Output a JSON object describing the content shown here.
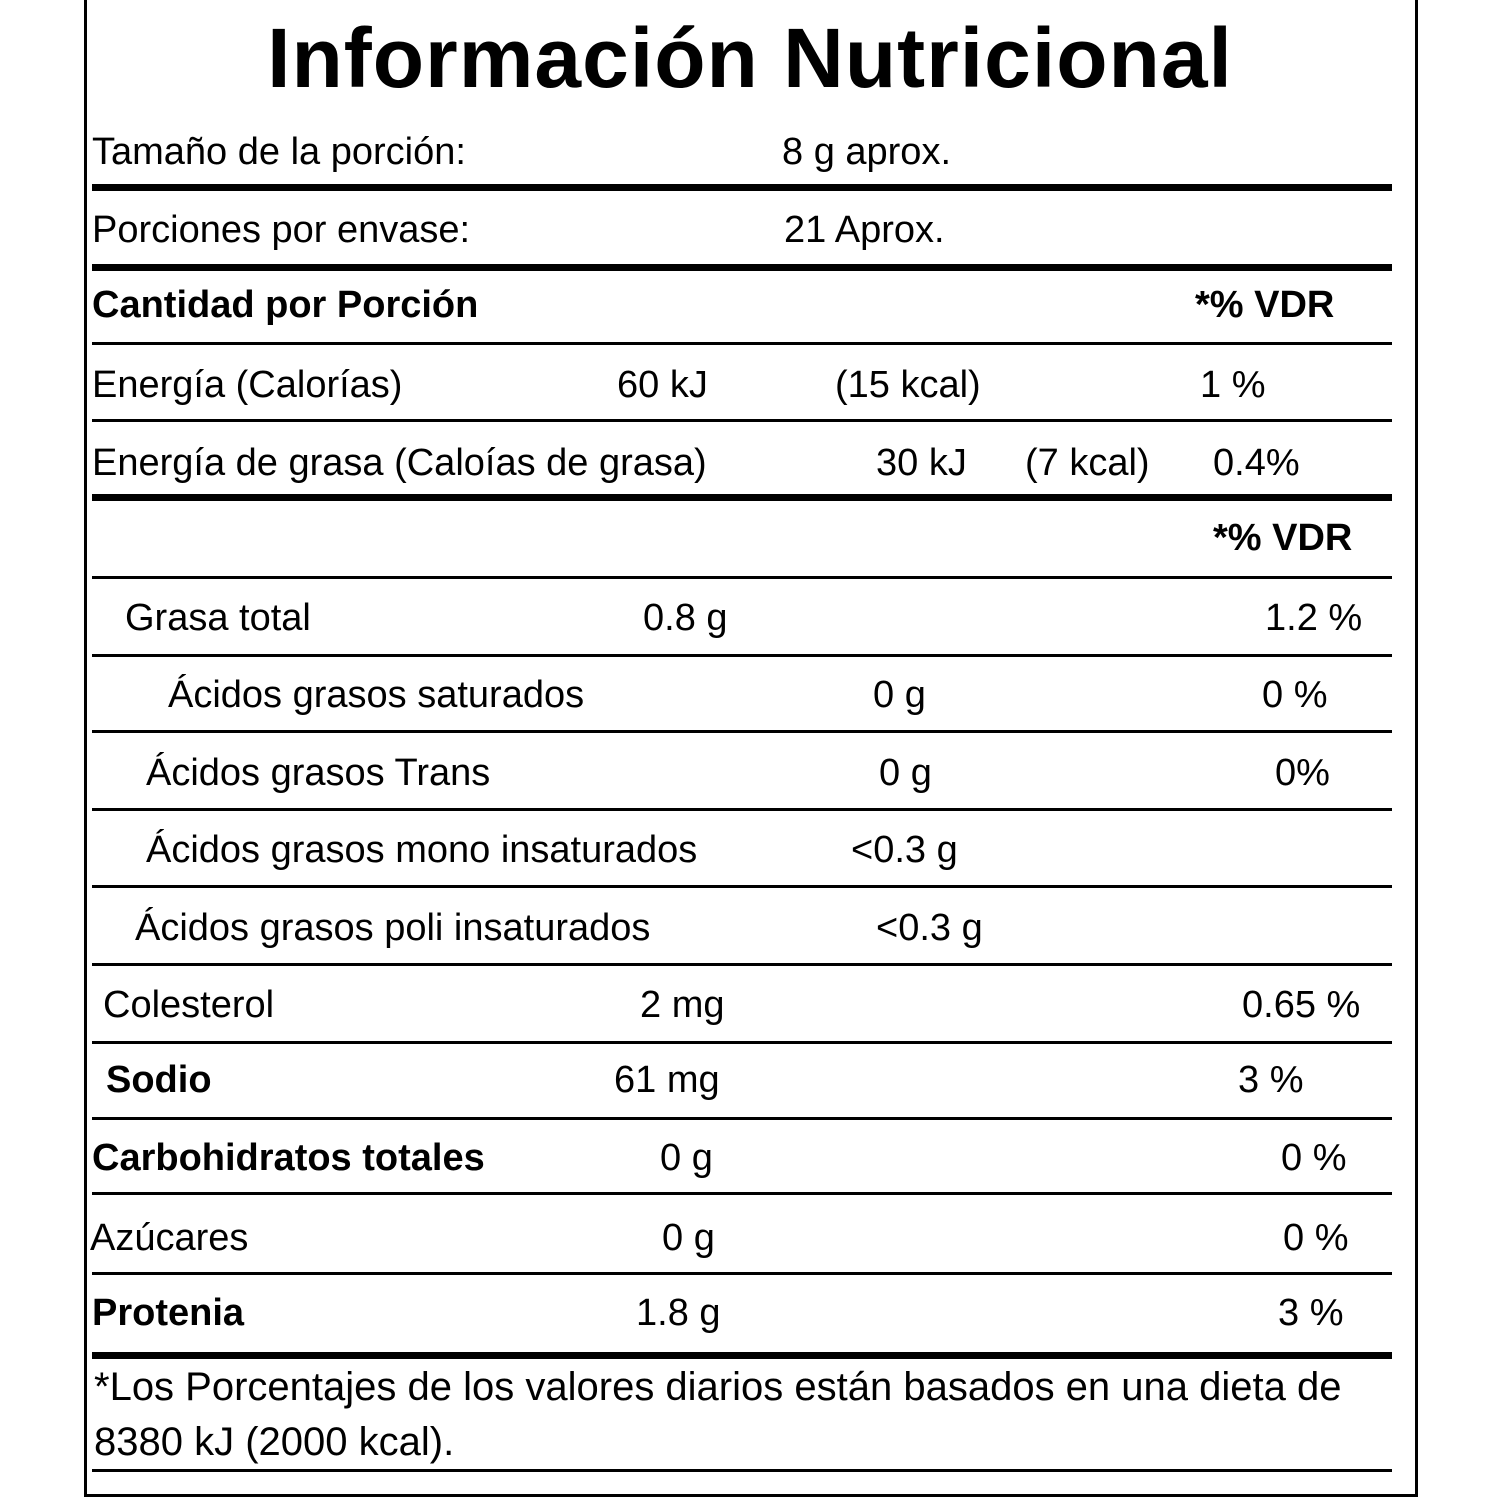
{
  "title": "Información Nutricional",
  "rows": [
    [
      "Tamaño de la porción:",
      "8 g aprox."
    ],
    [
      "Porciones por envase:",
      "21 Aprox."
    ],
    [
      "Cantidad por Porción",
      "*% VDR"
    ],
    [
      "Energía (Calorías)",
      "60 kJ",
      "(15 kcal)",
      "1 %"
    ],
    [
      "Energía de grasa (Caloías de grasa)",
      "30 kJ",
      "(7 kcal)",
      "0.4%"
    ],
    [
      "*% VDR"
    ],
    [
      "Grasa total",
      "0.8 g",
      "1.2 %"
    ],
    [
      "Ácidos grasos saturados",
      "0 g",
      "0 %"
    ],
    [
      "Ácidos grasos Trans",
      "0 g",
      "0%"
    ],
    [
      "Ácidos grasos mono insaturados",
      "<0.3 g"
    ],
    [
      "Ácidos grasos poli insaturados",
      "<0.3 g"
    ],
    [
      "Colesterol",
      "2 mg",
      "0.65 %"
    ],
    [
      "Sodio",
      "61 mg",
      "3 %"
    ],
    [
      "Carbohidratos totales",
      "0 g",
      "0 %"
    ],
    [
      "Azúcares",
      "0 g",
      "0 %"
    ],
    [
      "Protenia",
      "1.8 g",
      "3 %"
    ]
  ],
  "footnote": "*Los Porcentajes de los valores diarios están basados en una dieta de 8380 kJ (2000 kcal)."
}
